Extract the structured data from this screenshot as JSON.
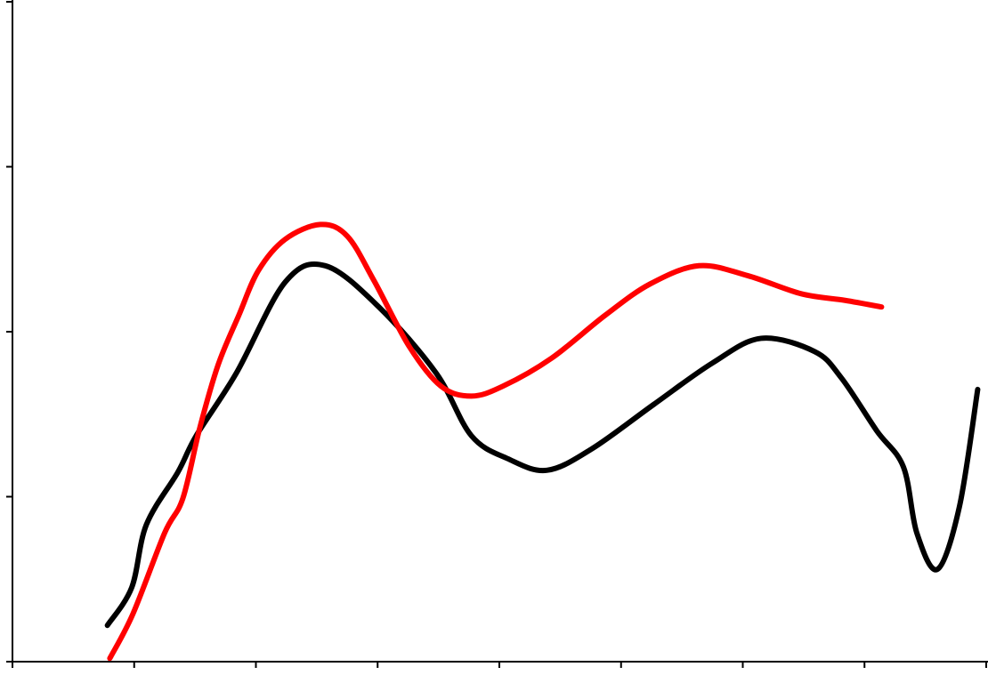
{
  "chart_data": {
    "type": "line",
    "xlim": [
      0,
      8
    ],
    "xticks": [
      0,
      1,
      2,
      3,
      4,
      5,
      6,
      7,
      8
    ],
    "ylim": [
      0,
      4
    ],
    "yticks": [
      0,
      1,
      2,
      3,
      4
    ],
    "grid": false,
    "series": [
      {
        "color": "#000000",
        "x": [
          0.78,
          0.98,
          1.1,
          1.36,
          1.51,
          1.84,
          2.24,
          2.57,
          3.01,
          3.48,
          3.77,
          4.07,
          4.39,
          4.76,
          5.27,
          5.75,
          6.15,
          6.59,
          6.81,
          7.1,
          7.32,
          7.43,
          7.6,
          7.78,
          7.93
        ],
        "values": [
          0.22,
          0.45,
          0.83,
          1.15,
          1.37,
          1.75,
          2.3,
          2.4,
          2.15,
          1.75,
          1.37,
          1.23,
          1.16,
          1.29,
          1.56,
          1.81,
          1.96,
          1.88,
          1.72,
          1.4,
          1.18,
          0.78,
          0.56,
          0.94,
          1.65
        ]
      },
      {
        "color": "#ff0000",
        "x": [
          0.8,
          0.99,
          1.25,
          1.4,
          1.54,
          1.69,
          1.86,
          2.02,
          2.24,
          2.53,
          2.75,
          2.97,
          3.26,
          3.52,
          3.77,
          4.03,
          4.43,
          4.87,
          5.24,
          5.64,
          6.04,
          6.48,
          6.84,
          7.14
        ],
        "values": [
          0.02,
          0.29,
          0.78,
          0.99,
          1.42,
          1.8,
          2.1,
          2.37,
          2.56,
          2.65,
          2.58,
          2.31,
          1.91,
          1.67,
          1.61,
          1.67,
          1.84,
          2.1,
          2.29,
          2.4,
          2.34,
          2.23,
          2.19,
          2.15
        ]
      }
    ]
  }
}
